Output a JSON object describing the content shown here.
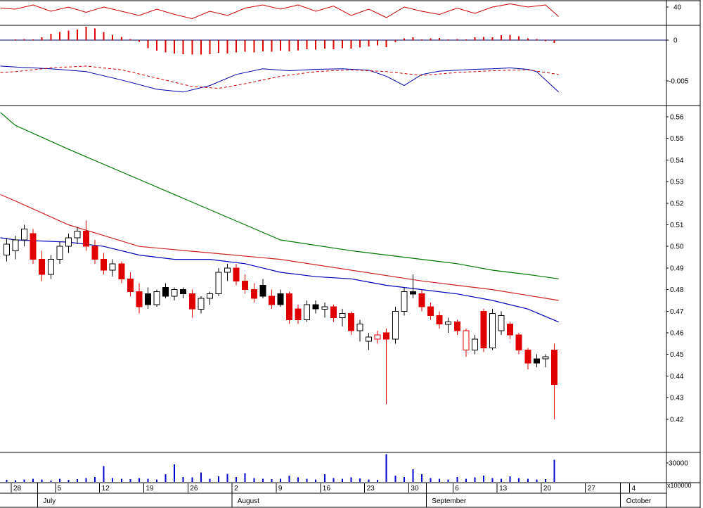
{
  "app": {
    "description": "stock-charting-window"
  },
  "colors": {
    "up_candle": "#ffffff",
    "down_candle": "#e00000",
    "black_candle": "#000000",
    "ma_short": "#0000bb",
    "ma_medium": "#cc2222",
    "ma_long": "#007700",
    "oscillator": "#cc0000",
    "macd": "#0000aa",
    "signal": "#cc0000",
    "histogram": "#dd0000",
    "volume": "#0000cc",
    "zero_line": "#000066",
    "border": "#000000",
    "text": "#000000"
  },
  "chart_data": {
    "type": "candlestick",
    "title": "",
    "start_day": -1,
    "layout_hints": {
      "grid": "off",
      "panels": [
        "oscillator-line",
        "histogram",
        "macd-lines",
        "price-candles-with-3-moving-averages",
        "volume-bars"
      ],
      "price_axis_range": [
        0.42,
        0.56
      ],
      "macd_axis_reference": -0.005,
      "oscillator_reference": 40,
      "volume_gridline": 30000
    },
    "price_axis": {
      "labels": [
        "0.56",
        "0.55",
        "0.54",
        "0.53",
        "0.52",
        "0.51",
        "0.50",
        "0.49",
        "0.48",
        "0.47",
        "0.46",
        "0.45",
        "0.44",
        "0.43",
        "0.42"
      ],
      "values": [
        0.56,
        0.55,
        0.54,
        0.53,
        0.52,
        0.51,
        0.5,
        0.49,
        0.48,
        0.47,
        0.46,
        0.45,
        0.44,
        0.43,
        0.42
      ]
    },
    "indicator_axis_labels": {
      "oscillator": "40",
      "histogram_zero": "0",
      "macd": "-0.005"
    },
    "volume_axis": {
      "gridline_label": "30000",
      "gridline_value": 30000,
      "unit_label": "x100000"
    },
    "x_axis": {
      "week_ticks": [
        {
          "label": "28",
          "day": 0
        },
        {
          "label": "5",
          "day": 5
        },
        {
          "label": "12",
          "day": 10
        },
        {
          "label": "19",
          "day": 15
        },
        {
          "label": "26",
          "day": 20
        },
        {
          "label": "2",
          "day": 25
        },
        {
          "label": "9",
          "day": 30
        },
        {
          "label": "16",
          "day": 35
        },
        {
          "label": "23",
          "day": 40
        },
        {
          "label": "30",
          "day": 45
        },
        {
          "label": "6",
          "day": 50
        },
        {
          "label": "13",
          "day": 55
        },
        {
          "label": "20",
          "day": 60
        },
        {
          "label": "27",
          "day": 65
        },
        {
          "label": "4",
          "day": 70
        }
      ],
      "months": [
        {
          "label": "July",
          "boundary_day": 2.5
        },
        {
          "label": "August",
          "boundary_day": 24.5
        },
        {
          "label": "September",
          "boundary_day": 46.5
        },
        {
          "label": "October",
          "boundary_day": 68.5
        }
      ]
    },
    "candles": [
      [
        0.496,
        0.504,
        0.493,
        0.501,
        "w"
      ],
      [
        0.498,
        0.505,
        0.494,
        0.503,
        "w"
      ],
      [
        0.503,
        0.51,
        0.5,
        0.508,
        "w"
      ],
      [
        0.506,
        0.508,
        0.492,
        0.494,
        "r"
      ],
      [
        0.494,
        0.498,
        0.484,
        0.487,
        "r"
      ],
      [
        0.487,
        0.496,
        0.485,
        0.494,
        "w"
      ],
      [
        0.494,
        0.502,
        0.492,
        0.5,
        "w"
      ],
      [
        0.5,
        0.506,
        0.497,
        0.504,
        "w"
      ],
      [
        0.504,
        0.509,
        0.501,
        0.507,
        "w"
      ],
      [
        0.507,
        0.512,
        0.498,
        0.5,
        "r"
      ],
      [
        0.5,
        0.503,
        0.492,
        0.494,
        "r"
      ],
      [
        0.494,
        0.497,
        0.487,
        0.489,
        "r"
      ],
      [
        0.489,
        0.494,
        0.486,
        0.492,
        "w"
      ],
      [
        0.492,
        0.493,
        0.483,
        0.485,
        "r"
      ],
      [
        0.485,
        0.488,
        0.477,
        0.479,
        "r"
      ],
      [
        0.479,
        0.483,
        0.469,
        0.472,
        "r"
      ],
      [
        0.478,
        0.481,
        0.471,
        0.473,
        "b"
      ],
      [
        0.473,
        0.48,
        0.472,
        0.479,
        "w"
      ],
      [
        0.481,
        0.483,
        0.476,
        0.477,
        "b"
      ],
      [
        0.477,
        0.481,
        0.475,
        0.48,
        "w"
      ],
      [
        0.48,
        0.481,
        0.476,
        0.478,
        "b"
      ],
      [
        0.478,
        0.48,
        0.467,
        0.471,
        "r"
      ],
      [
        0.471,
        0.477,
        0.469,
        0.476,
        "w"
      ],
      [
        0.476,
        0.479,
        0.473,
        0.478,
        "w"
      ],
      [
        0.478,
        0.49,
        0.477,
        0.488,
        "w"
      ],
      [
        0.488,
        0.492,
        0.484,
        0.49,
        "w"
      ],
      [
        0.49,
        0.492,
        0.482,
        0.484,
        "r"
      ],
      [
        0.484,
        0.487,
        0.478,
        0.48,
        "r"
      ],
      [
        0.48,
        0.483,
        0.474,
        0.476,
        "r"
      ],
      [
        0.482,
        0.485,
        0.476,
        0.477,
        "b"
      ],
      [
        0.477,
        0.48,
        0.471,
        0.473,
        "r"
      ],
      [
        0.473,
        0.48,
        0.472,
        0.478,
        "b"
      ],
      [
        0.478,
        0.479,
        0.464,
        0.466,
        "r"
      ],
      [
        0.471,
        0.473,
        0.464,
        0.466,
        "r"
      ],
      [
        0.466,
        0.475,
        0.465,
        0.473,
        "w"
      ],
      [
        0.473,
        0.475,
        0.469,
        0.471,
        "b"
      ],
      [
        0.471,
        0.474,
        0.467,
        0.472,
        "w"
      ],
      [
        0.472,
        0.473,
        0.465,
        0.467,
        "r"
      ],
      [
        0.467,
        0.471,
        0.463,
        0.469,
        "w"
      ],
      [
        0.469,
        0.47,
        0.459,
        0.461,
        "r"
      ],
      [
        0.461,
        0.466,
        0.456,
        0.464,
        "w"
      ],
      [
        0.456,
        0.46,
        0.452,
        0.458,
        "w"
      ],
      [
        0.459,
        0.461,
        0.455,
        0.457,
        "rh"
      ],
      [
        0.46,
        0.462,
        0.427,
        0.457,
        "r"
      ],
      [
        0.457,
        0.472,
        0.455,
        0.47,
        "w"
      ],
      [
        0.47,
        0.481,
        0.468,
        0.479,
        "w"
      ],
      [
        0.479,
        0.487,
        0.476,
        0.478,
        "b"
      ],
      [
        0.478,
        0.48,
        0.47,
        0.472,
        "r"
      ],
      [
        0.472,
        0.474,
        0.466,
        0.468,
        "r"
      ],
      [
        0.468,
        0.47,
        0.462,
        0.464,
        "r"
      ],
      [
        0.464,
        0.467,
        0.46,
        0.465,
        "w"
      ],
      [
        0.465,
        0.466,
        0.459,
        0.461,
        "r"
      ],
      [
        0.461,
        0.462,
        0.449,
        0.452,
        "rh"
      ],
      [
        0.452,
        0.459,
        0.45,
        0.457,
        "w"
      ],
      [
        0.47,
        0.471,
        0.451,
        0.453,
        "r"
      ],
      [
        0.453,
        0.471,
        0.452,
        0.469,
        "w"
      ],
      [
        0.461,
        0.47,
        0.459,
        0.468,
        "w"
      ],
      [
        0.464,
        0.465,
        0.457,
        0.459,
        "r"
      ],
      [
        0.459,
        0.46,
        0.45,
        0.452,
        "r"
      ],
      [
        0.452,
        0.453,
        0.443,
        0.446,
        "r"
      ],
      [
        0.446,
        0.45,
        0.444,
        0.448,
        "b"
      ],
      [
        0.448,
        0.45,
        0.444,
        0.449,
        "w"
      ],
      [
        0.452,
        0.455,
        0.42,
        0.436,
        "r"
      ]
    ],
    "volume": [
      3500,
      3000,
      4000,
      5000,
      4000,
      2500,
      5000,
      3500,
      4500,
      6000,
      8000,
      25000,
      6000,
      5000,
      4500,
      6000,
      5000,
      4000,
      12000,
      28000,
      8000,
      7000,
      15000,
      5000,
      9000,
      13000,
      8000,
      14000,
      6000,
      5000,
      4500,
      5000,
      10000,
      7000,
      5000,
      4000,
      12000,
      6000,
      5000,
      7000,
      5500,
      4000,
      3500,
      44000,
      10000,
      8000,
      20000,
      12000,
      6000,
      5000,
      4000,
      8000,
      5000,
      7000,
      10000,
      6000,
      5000,
      9000,
      6000,
      5000,
      4000,
      4500,
      35000
    ],
    "histogram": [
      0.0,
      0.1,
      0.2,
      0.1,
      0.5,
      1.2,
      1.5,
      1.8,
      2.0,
      2.5,
      2.2,
      1.5,
      1.0,
      0.6,
      0.2,
      -0.3,
      -1.5,
      -2.0,
      -2.3,
      -2.5,
      -2.6,
      -2.7,
      -2.7,
      -2.6,
      -2.4,
      -2.5,
      -2.3,
      -2.2,
      -2.3,
      -2.1,
      -2.2,
      -2.0,
      -2.1,
      -1.9,
      -1.7,
      -1.8,
      -1.6,
      -1.7,
      -1.5,
      -1.6,
      -1.4,
      -1.2,
      -1.0,
      -1.3,
      -0.4,
      0.3,
      0.5,
      0.1,
      0.3,
      0.4,
      0.1,
      0.2,
      0.1,
      0.5,
      0.6,
      0.5,
      0.9,
      1.0,
      0.7,
      0.3,
      0.2,
      -0.2,
      -0.5
    ],
    "oscillator_line": [
      [
        -1.7,
        39.5
      ],
      [
        0,
        39
      ],
      [
        2,
        41
      ],
      [
        4,
        38
      ],
      [
        6,
        40
      ],
      [
        8,
        37.5
      ],
      [
        10,
        40
      ],
      [
        12,
        38
      ],
      [
        14,
        36
      ],
      [
        16,
        39
      ],
      [
        18,
        36.5
      ],
      [
        20,
        34.5
      ],
      [
        22,
        38
      ],
      [
        24,
        36
      ],
      [
        26,
        39.5
      ],
      [
        28,
        41
      ],
      [
        30,
        39
      ],
      [
        32,
        41
      ],
      [
        34,
        38
      ],
      [
        36,
        40.5
      ],
      [
        38,
        36
      ],
      [
        40,
        39
      ],
      [
        42,
        35
      ],
      [
        44,
        40
      ],
      [
        46,
        38
      ],
      [
        48,
        36.5
      ],
      [
        50,
        39.5
      ],
      [
        52,
        37
      ],
      [
        54,
        40
      ],
      [
        56,
        41.5
      ],
      [
        58,
        40
      ],
      [
        60,
        41
      ],
      [
        61.5,
        35.5
      ]
    ],
    "macd_line": [
      [
        -1.7,
        -0.0018
      ],
      [
        0,
        -0.002
      ],
      [
        4,
        -0.0024
      ],
      [
        8,
        -0.003
      ],
      [
        12,
        -0.0048
      ],
      [
        16,
        -0.0068
      ],
      [
        19,
        -0.0074
      ],
      [
        22,
        -0.006
      ],
      [
        25,
        -0.0036
      ],
      [
        28,
        -0.0024
      ],
      [
        31,
        -0.0028
      ],
      [
        34,
        -0.0025
      ],
      [
        37,
        -0.0024
      ],
      [
        40,
        -0.0027
      ],
      [
        42,
        -0.004
      ],
      [
        44,
        -0.006
      ],
      [
        46,
        -0.0036
      ],
      [
        48,
        -0.0029
      ],
      [
        50,
        -0.0027
      ],
      [
        52,
        -0.0025
      ],
      [
        54,
        -0.0024
      ],
      [
        56,
        -0.0022
      ],
      [
        58,
        -0.0025
      ],
      [
        59,
        -0.003
      ],
      [
        61.5,
        -0.0074
      ]
    ],
    "signal_line": [
      [
        -1.7,
        -0.0032
      ],
      [
        0,
        -0.003
      ],
      [
        4,
        -0.0022
      ],
      [
        8,
        -0.0018
      ],
      [
        12,
        -0.0026
      ],
      [
        16,
        -0.0044
      ],
      [
        20,
        -0.0062
      ],
      [
        23,
        -0.0066
      ],
      [
        26,
        -0.0056
      ],
      [
        30,
        -0.004
      ],
      [
        34,
        -0.003
      ],
      [
        38,
        -0.0026
      ],
      [
        42,
        -0.003
      ],
      [
        46,
        -0.0038
      ],
      [
        50,
        -0.0032
      ],
      [
        54,
        -0.0028
      ],
      [
        58,
        -0.0026
      ],
      [
        61.5,
        -0.0036
      ]
    ],
    "ma_long": [
      [
        -1.7,
        0.562
      ],
      [
        0,
        0.556
      ],
      [
        6,
        0.545
      ],
      [
        14,
        0.531
      ],
      [
        22,
        0.517
      ],
      [
        30,
        0.503
      ],
      [
        38,
        0.498
      ],
      [
        42,
        0.496
      ],
      [
        46,
        0.494
      ],
      [
        50,
        0.492
      ],
      [
        54,
        0.489
      ],
      [
        58,
        0.487
      ],
      [
        61.5,
        0.485
      ]
    ],
    "ma_medium": [
      [
        -1.7,
        0.524
      ],
      [
        0,
        0.521
      ],
      [
        6,
        0.51
      ],
      [
        14,
        0.5
      ],
      [
        22,
        0.497
      ],
      [
        30,
        0.494
      ],
      [
        38,
        0.489
      ],
      [
        46,
        0.484
      ],
      [
        54,
        0.48
      ],
      [
        61.5,
        0.475
      ]
    ],
    "ma_short": [
      [
        -1.7,
        0.504
      ],
      [
        0,
        0.503
      ],
      [
        6,
        0.502
      ],
      [
        10,
        0.5
      ],
      [
        14,
        0.496
      ],
      [
        18,
        0.494
      ],
      [
        22,
        0.494
      ],
      [
        26,
        0.492
      ],
      [
        30,
        0.488
      ],
      [
        34,
        0.486
      ],
      [
        38,
        0.485
      ],
      [
        42,
        0.482
      ],
      [
        46,
        0.48
      ],
      [
        50,
        0.478
      ],
      [
        54,
        0.475
      ],
      [
        58,
        0.471
      ],
      [
        61.5,
        0.465
      ]
    ]
  }
}
